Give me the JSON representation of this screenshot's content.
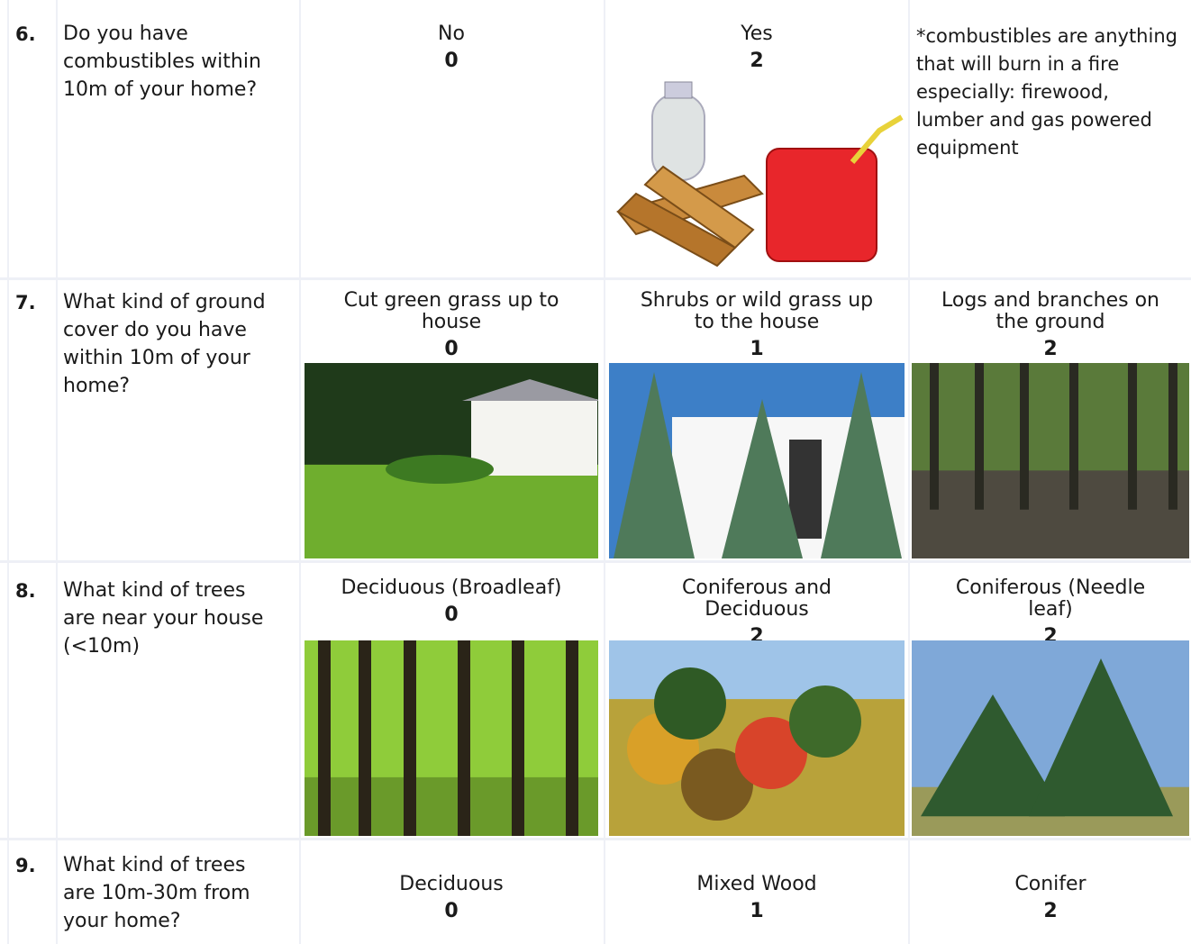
{
  "rows": [
    {
      "number": "6.",
      "question": "Do you have combustibles within 10m of your home?",
      "options": [
        {
          "label": "No",
          "score": 0
        },
        {
          "label": "Yes",
          "score": 2
        }
      ],
      "note": "*combustibles are anything that will burn in a fire especially: firewood, lumber and gas powered equipment"
    },
    {
      "number": "7.",
      "question": "What kind of ground cover do you have within 10m of your home?",
      "options": [
        {
          "label": "Cut green grass up to house",
          "score": 0
        },
        {
          "label": "Shrubs or wild grass up to the house",
          "score": 1
        },
        {
          "label": "Logs and branches on the ground",
          "score": 2
        }
      ]
    },
    {
      "number": "8.",
      "question": "What kind of trees are near your house (<10m)",
      "options": [
        {
          "label": "Deciduous (Broadleaf)",
          "score": 0
        },
        {
          "label": "Coniferous and Deciduous",
          "score": 2
        },
        {
          "label": "Coniferous (Needle leaf)",
          "score": 2
        }
      ]
    },
    {
      "number": "9.",
      "question": "What kind of trees are 10m-30m from your home?",
      "options": [
        {
          "label": "Deciduous",
          "score": 0
        },
        {
          "label": "Mixed Wood",
          "score": 1
        },
        {
          "label": "Conifer",
          "score": 2
        }
      ]
    }
  ]
}
